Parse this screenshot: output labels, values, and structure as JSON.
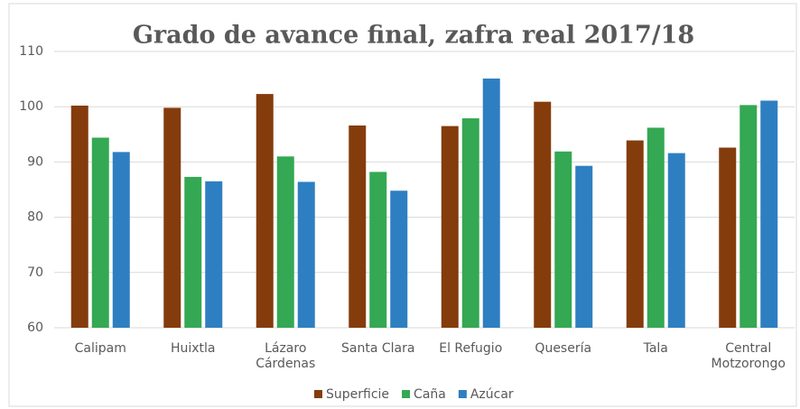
{
  "chart_data": {
    "type": "bar",
    "title": "Grado de avance final, zafra real 2017/18",
    "categories": [
      "Calipam",
      "Huixtla",
      "Lázaro Cárdenas",
      "Santa Clara",
      "El Refugio",
      "Quesería",
      "Tala",
      "Central Motzorongo"
    ],
    "series": [
      {
        "name": "Superficie",
        "color": "#843c0c",
        "values": [
          100.2,
          99.8,
          102.3,
          96.6,
          96.5,
          100.9,
          93.9,
          92.6
        ]
      },
      {
        "name": "Caña",
        "color": "#34a853",
        "values": [
          94.4,
          87.3,
          91.0,
          88.2,
          97.9,
          91.9,
          96.2,
          100.3
        ]
      },
      {
        "name": "Azúcar",
        "color": "#2e7fc1",
        "values": [
          91.8,
          86.5,
          86.4,
          84.8,
          105.1,
          89.3,
          91.6,
          101.1
        ]
      }
    ],
    "ylim": [
      60,
      110
    ],
    "yticks": [
      60,
      70,
      80,
      90,
      100,
      110
    ],
    "grid": true,
    "legend": "bottom"
  }
}
